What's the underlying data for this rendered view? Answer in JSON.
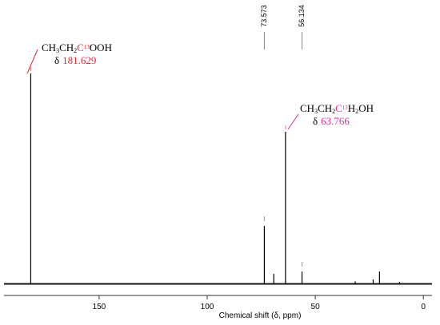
{
  "chart_data": {
    "type": "stem",
    "x": [
      181.629,
      73.573,
      69.2,
      63.766,
      56.134,
      31.5,
      23.2,
      20.3,
      11.0
    ],
    "values": [
      78.5,
      21.5,
      3.6,
      56.7,
      4.5,
      0.8,
      1.5,
      4.5,
      0.6
    ],
    "color": "#000000",
    "xlabel": "Chemical shift (δ, ppm)",
    "xlim": [
      194,
      -4
    ],
    "xticks": [
      0,
      50,
      100,
      150
    ],
    "ylim": [
      0,
      100
    ],
    "annotations": [
      {
        "formula": [
          {
            "text": "CH"
          },
          {
            "text": "3",
            "shift": "sub"
          },
          {
            "text": "CH"
          },
          {
            "text": "2",
            "shift": "sub"
          },
          {
            "text": "C",
            "color": "#e8283c"
          },
          {
            "text": "13",
            "shift": "super",
            "color": "#e8283c"
          },
          {
            "text": "OOH"
          }
        ],
        "symbol": "δ",
        "color": "#e8283c"
      },
      {
        "formula": [
          {
            "text": "CH"
          },
          {
            "text": "3",
            "shift": "sub"
          },
          {
            "text": "CH"
          },
          {
            "text": "2",
            "shift": "sub"
          },
          {
            "text": "C",
            "color": "#e02aa0"
          },
          {
            "text": "13",
            "shift": "super",
            "color": "#e02aa0"
          },
          {
            "text": "H"
          },
          {
            "text": "2",
            "shift": "sub"
          },
          {
            "text": "OH"
          }
        ],
        "symbol": "δ",
        "color": "#e02aa0"
      }
    ]
  }
}
